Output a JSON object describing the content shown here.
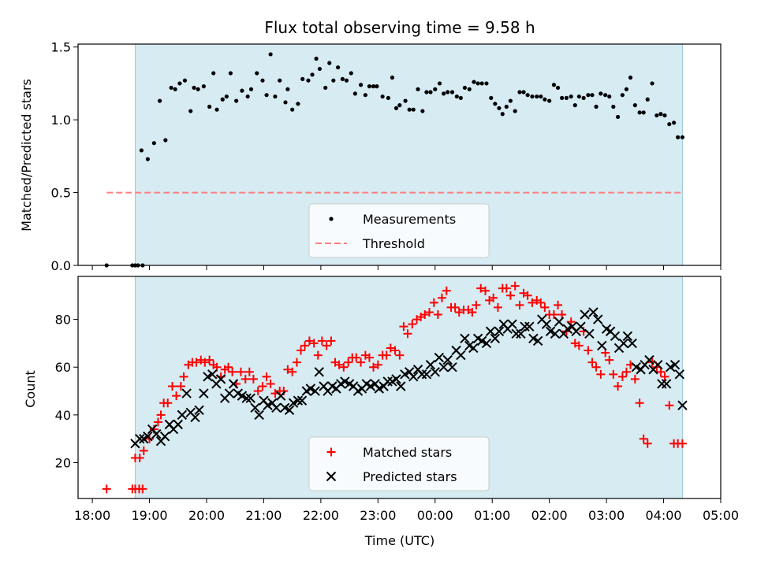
{
  "title": "Flux total observing time = 9.58 h",
  "chart_data": [
    {
      "type": "scatter",
      "ylabel": "Matched/Predicted stars",
      "ylim": [
        0,
        1.52
      ],
      "yticks": [
        0.0,
        0.5,
        1.0,
        1.5
      ],
      "ytick_labels": [
        "0.0",
        "0.5",
        "1.0",
        "1.5"
      ],
      "xlim": [
        -0.25,
        11.0
      ],
      "shaded_range": [
        0.75,
        10.33
      ],
      "legend_position": "lower-center",
      "series": [
        {
          "name": "Measurements",
          "marker": "dot",
          "color": "#000000",
          "x": [
            0.25,
            0.7,
            0.75,
            0.8,
            0.88,
            0.86,
            0.97,
            1.08,
            1.18,
            1.28,
            1.38,
            1.45,
            1.53,
            1.62,
            1.72,
            1.78,
            1.85,
            1.95,
            2.05,
            2.12,
            2.18,
            2.28,
            2.35,
            2.42,
            2.52,
            2.62,
            2.72,
            2.78,
            2.88,
            2.98,
            3.05,
            3.12,
            3.2,
            3.28,
            3.38,
            3.42,
            3.5,
            3.6,
            3.68,
            3.78,
            3.85,
            3.92,
            3.98,
            4.08,
            4.15,
            4.22,
            4.3,
            4.38,
            4.45,
            4.53,
            4.6,
            4.7,
            4.78,
            4.85,
            4.92,
            4.98,
            5.08,
            5.18,
            5.25,
            5.32,
            5.38,
            5.48,
            5.55,
            5.62,
            5.7,
            5.78,
            5.85,
            5.92,
            6.0,
            6.08,
            6.15,
            6.22,
            6.3,
            6.38,
            6.45,
            6.52,
            6.6,
            6.68,
            6.75,
            6.82,
            6.9,
            6.98,
            7.05,
            7.12,
            7.18,
            7.25,
            7.32,
            7.4,
            7.48,
            7.55,
            7.62,
            7.7,
            7.78,
            7.85,
            7.92,
            8.0,
            8.08,
            8.15,
            8.22,
            8.3,
            8.38,
            8.45,
            8.52,
            8.6,
            8.68,
            8.75,
            8.82,
            8.9,
            8.98,
            9.05,
            9.12,
            9.2,
            9.28,
            9.35,
            9.42,
            9.5,
            9.58,
            9.65,
            9.72,
            9.8,
            9.88,
            9.95,
            10.02,
            10.1,
            10.18,
            10.25,
            10.33
          ],
          "y": [
            0.0,
            0.0,
            0.0,
            0.0,
            0.0,
            0.79,
            0.73,
            0.84,
            1.13,
            0.86,
            1.22,
            1.21,
            1.25,
            1.27,
            1.06,
            1.22,
            1.21,
            1.23,
            1.09,
            1.32,
            1.07,
            1.14,
            1.16,
            1.32,
            1.13,
            1.2,
            1.16,
            1.21,
            1.32,
            1.27,
            1.17,
            1.45,
            1.16,
            1.27,
            1.12,
            1.21,
            1.07,
            1.11,
            1.28,
            1.27,
            1.31,
            1.42,
            1.35,
            1.22,
            1.39,
            1.27,
            1.36,
            1.28,
            1.27,
            1.32,
            1.18,
            1.24,
            1.17,
            1.23,
            1.23,
            1.23,
            1.16,
            1.15,
            1.29,
            1.08,
            1.1,
            1.13,
            1.07,
            1.07,
            1.21,
            1.06,
            1.19,
            1.19,
            1.21,
            1.25,
            1.18,
            1.19,
            1.19,
            1.16,
            1.15,
            1.22,
            1.21,
            1.26,
            1.25,
            1.25,
            1.25,
            1.15,
            1.11,
            1.08,
            1.04,
            1.09,
            1.13,
            1.06,
            1.19,
            1.19,
            1.17,
            1.16,
            1.16,
            1.16,
            1.14,
            1.13,
            1.24,
            1.22,
            1.15,
            1.15,
            1.16,
            1.1,
            1.16,
            1.15,
            1.17,
            1.17,
            1.09,
            1.18,
            1.17,
            1.16,
            1.09,
            1.02,
            1.17,
            1.21,
            1.29,
            1.1,
            1.05,
            1.05,
            1.14,
            1.25,
            1.03,
            1.04,
            1.03,
            0.97,
            0.98,
            0.88,
            0.88
          ]
        },
        {
          "name": "Threshold",
          "marker": "dashed-line",
          "color": "#ff7f7f",
          "x": [
            0.25,
            10.33
          ],
          "y": [
            0.5,
            0.5
          ]
        }
      ]
    },
    {
      "type": "scatter",
      "xlabel": "Time (UTC)",
      "ylabel": "Count",
      "ylim": [
        5,
        98
      ],
      "yticks": [
        20,
        40,
        60,
        80
      ],
      "ytick_labels": [
        "20",
        "40",
        "60",
        "80"
      ],
      "xlim": [
        -0.25,
        11.0
      ],
      "xticks": [
        0,
        1,
        2,
        3,
        4,
        5,
        6,
        7,
        8,
        9,
        10,
        11
      ],
      "xtick_labels": [
        "18:00",
        "19:00",
        "20:00",
        "21:00",
        "22:00",
        "23:00",
        "00:00",
        "01:00",
        "02:00",
        "03:00",
        "04:00",
        "05:00"
      ],
      "shaded_range": [
        0.75,
        10.33
      ],
      "legend_position": "lower-center",
      "series": [
        {
          "name": "Matched stars",
          "marker": "plus",
          "color": "#ff0000",
          "x": [
            0.25,
            0.7,
            0.75,
            0.82,
            0.88,
            0.75,
            0.83,
            0.9,
            1.0,
            1.08,
            1.15,
            1.2,
            1.25,
            1.32,
            1.4,
            1.47,
            1.55,
            1.6,
            1.68,
            1.75,
            1.82,
            1.9,
            1.97,
            2.05,
            2.12,
            2.18,
            2.25,
            2.32,
            2.38,
            2.45,
            2.52,
            2.6,
            2.68,
            2.75,
            2.82,
            2.9,
            2.98,
            3.05,
            3.12,
            3.2,
            3.28,
            3.35,
            3.42,
            3.5,
            3.58,
            3.65,
            3.72,
            3.8,
            3.88,
            3.95,
            4.02,
            4.1,
            4.18,
            4.25,
            4.32,
            4.4,
            4.48,
            4.55,
            4.62,
            4.7,
            4.78,
            4.85,
            4.92,
            5.0,
            5.08,
            5.15,
            5.22,
            5.3,
            5.38,
            5.45,
            5.52,
            5.6,
            5.68,
            5.75,
            5.82,
            5.9,
            5.98,
            6.05,
            6.12,
            6.2,
            6.28,
            6.35,
            6.42,
            6.5,
            6.58,
            6.65,
            6.72,
            6.8,
            6.88,
            6.95,
            7.02,
            7.1,
            7.18,
            7.25,
            7.32,
            7.4,
            7.48,
            7.55,
            7.62,
            7.7,
            7.78,
            7.85,
            7.92,
            8.0,
            8.08,
            8.15,
            8.22,
            8.3,
            8.38,
            8.45,
            8.52,
            8.6,
            8.68,
            8.75,
            8.82,
            8.9,
            8.98,
            9.05,
            9.12,
            9.2,
            9.28,
            9.35,
            9.42,
            9.5,
            9.58,
            9.65,
            9.72,
            9.8,
            9.88,
            9.95,
            10.02,
            10.1,
            10.18,
            10.25,
            10.33
          ],
          "y": [
            9,
            9,
            9,
            9,
            9,
            22,
            22,
            25,
            30,
            34,
            37,
            40,
            45,
            45,
            52,
            48,
            52,
            56,
            61,
            62,
            62,
            63,
            62,
            63,
            61,
            60,
            56,
            59,
            60,
            58,
            53,
            58,
            55,
            58,
            55,
            50,
            52,
            56,
            53,
            49,
            50,
            50,
            59,
            58,
            62,
            67,
            69,
            71,
            70,
            65,
            71,
            69,
            71,
            62,
            61,
            60,
            62,
            64,
            64,
            62,
            65,
            64,
            60,
            61,
            65,
            65,
            68,
            67,
            65,
            77,
            74,
            78,
            80,
            81,
            82,
            83,
            87,
            82,
            89,
            92,
            85,
            85,
            83,
            84,
            84,
            83,
            86,
            93,
            92,
            88,
            89,
            85,
            93,
            93,
            90,
            94,
            86,
            91,
            90,
            87,
            88,
            87,
            85,
            82,
            82,
            86,
            82,
            75,
            79,
            70,
            69,
            75,
            67,
            62,
            60,
            57,
            66,
            63,
            57,
            52,
            56,
            58,
            61,
            55,
            45,
            30,
            28,
            62,
            60,
            58,
            56,
            44,
            28,
            28,
            28
          ]
        },
        {
          "name": "Predicted stars",
          "marker": "x",
          "color": "#000000",
          "x": [
            0.75,
            0.83,
            0.9,
            0.97,
            1.05,
            1.12,
            1.2,
            1.27,
            1.35,
            1.42,
            1.5,
            1.57,
            1.65,
            1.72,
            1.8,
            1.87,
            1.95,
            2.02,
            2.1,
            2.17,
            2.25,
            2.32,
            2.4,
            2.47,
            2.55,
            2.62,
            2.7,
            2.77,
            2.85,
            2.92,
            3.0,
            3.07,
            3.15,
            3.22,
            3.3,
            3.37,
            3.45,
            3.52,
            3.6,
            3.67,
            3.75,
            3.82,
            3.9,
            3.97,
            4.05,
            4.12,
            4.2,
            4.27,
            4.35,
            4.42,
            4.5,
            4.57,
            4.65,
            4.72,
            4.8,
            4.87,
            4.95,
            5.02,
            5.1,
            5.17,
            5.25,
            5.32,
            5.4,
            5.47,
            5.55,
            5.62,
            5.7,
            5.77,
            5.85,
            5.92,
            6.0,
            6.07,
            6.15,
            6.22,
            6.3,
            6.37,
            6.45,
            6.52,
            6.6,
            6.67,
            6.75,
            6.82,
            6.9,
            6.97,
            7.05,
            7.12,
            7.2,
            7.27,
            7.35,
            7.42,
            7.5,
            7.57,
            7.65,
            7.72,
            7.8,
            7.87,
            7.95,
            8.02,
            8.1,
            8.17,
            8.25,
            8.32,
            8.4,
            8.47,
            8.55,
            8.62,
            8.7,
            8.77,
            8.85,
            8.92,
            9.0,
            9.07,
            9.15,
            9.22,
            9.3,
            9.37,
            9.45,
            9.52,
            9.6,
            9.67,
            9.75,
            9.82,
            9.9,
            9.97,
            10.05,
            10.12,
            10.2,
            10.28,
            10.33
          ],
          "y": [
            28,
            30,
            30,
            31,
            34,
            32,
            29,
            31,
            36,
            34,
            36,
            40,
            49,
            41,
            39,
            42,
            49,
            56,
            57,
            53,
            55,
            47,
            49,
            53,
            49,
            48,
            47,
            47,
            43,
            40,
            46,
            44,
            45,
            43,
            48,
            43,
            42,
            45,
            46,
            46,
            50,
            51,
            50,
            58,
            52,
            50,
            52,
            51,
            53,
            54,
            53,
            52,
            50,
            51,
            53,
            52,
            53,
            51,
            52,
            54,
            54,
            55,
            52,
            57,
            58,
            56,
            59,
            57,
            57,
            61,
            58,
            64,
            60,
            63,
            60,
            67,
            65,
            72,
            69,
            68,
            72,
            71,
            70,
            75,
            72,
            75,
            78,
            76,
            78,
            74,
            74,
            77,
            77,
            72,
            71,
            80,
            78,
            75,
            74,
            79,
            74,
            76,
            77,
            75,
            77,
            82,
            74,
            83,
            80,
            69,
            76,
            75,
            73,
            68,
            70,
            73,
            70,
            60,
            59,
            61,
            63,
            59,
            61,
            53,
            53,
            60,
            61,
            57,
            44
          ]
        }
      ]
    }
  ]
}
